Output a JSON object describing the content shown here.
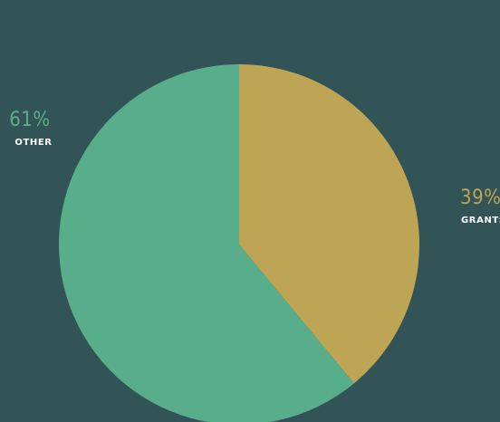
{
  "background_color": "#335457",
  "chart_data": {
    "type": "pie",
    "start_angle_deg": 0,
    "direction": "clockwise",
    "slices": [
      {
        "label": "GRANTS",
        "value": 39,
        "display": "39%",
        "color": "#BEA555"
      },
      {
        "label": "OTHER",
        "value": 61,
        "display": "61%",
        "color": "#58AE8A"
      }
    ]
  }
}
